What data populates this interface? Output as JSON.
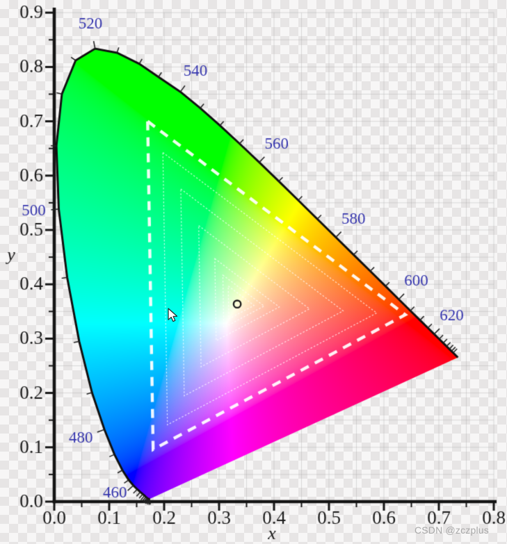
{
  "watermark": {
    "text": "CSDN @zczplus"
  },
  "chart_data": {
    "type": "chromaticity-diagram",
    "title": "",
    "xlabel": "x",
    "ylabel": "y",
    "xlim": [
      0,
      0.8
    ],
    "ylim": [
      0,
      0.9
    ],
    "x_tick_labels": [
      "0.0",
      "0.1",
      "0.2",
      "0.3",
      "0.4",
      "0.5",
      "0.6",
      "0.7",
      "0.8"
    ],
    "y_tick_labels": [
      "0.0",
      "0.1",
      "0.2",
      "0.3",
      "0.4",
      "0.5",
      "0.6",
      "0.7",
      "0.8",
      "0.9"
    ],
    "minor_tick_step": 0.05,
    "grid_step": 0.05,
    "grid_on": true,
    "wavelength_labels": [
      460,
      480,
      500,
      520,
      540,
      560,
      580,
      600,
      620
    ],
    "wavelength_tick_range": [
      400,
      650
    ],
    "wavelength_tick_step": 5,
    "white_point": {
      "x": 0.333,
      "y": 0.363
    },
    "gamut_triangle_xy": [
      [
        0.17,
        0.7
      ],
      [
        0.639,
        0.344
      ],
      [
        0.18,
        0.096
      ]
    ],
    "nested_triangle_scales": [
      1.0,
      0.83,
      0.63,
      0.43,
      0.25,
      0.16,
      0.1
    ],
    "spectral_locus": [
      [
        380,
        0.1741,
        0.005
      ],
      [
        385,
        0.174,
        0.005
      ],
      [
        390,
        0.1738,
        0.0049
      ],
      [
        395,
        0.1736,
        0.0049
      ],
      [
        400,
        0.1733,
        0.0048
      ],
      [
        405,
        0.173,
        0.0048
      ],
      [
        410,
        0.1726,
        0.0048
      ],
      [
        415,
        0.1721,
        0.0048
      ],
      [
        420,
        0.1714,
        0.0051
      ],
      [
        425,
        0.1703,
        0.0058
      ],
      [
        430,
        0.1689,
        0.0069
      ],
      [
        435,
        0.1669,
        0.0086
      ],
      [
        440,
        0.1644,
        0.0109
      ],
      [
        445,
        0.1611,
        0.0138
      ],
      [
        450,
        0.1566,
        0.0177
      ],
      [
        455,
        0.151,
        0.0227
      ],
      [
        460,
        0.144,
        0.0297
      ],
      [
        465,
        0.1355,
        0.0399
      ],
      [
        470,
        0.1241,
        0.0578
      ],
      [
        475,
        0.1096,
        0.0868
      ],
      [
        480,
        0.0913,
        0.1327
      ],
      [
        485,
        0.0687,
        0.2007
      ],
      [
        490,
        0.0454,
        0.295
      ],
      [
        495,
        0.0235,
        0.4127
      ],
      [
        500,
        0.0082,
        0.5384
      ],
      [
        505,
        0.0039,
        0.6548
      ],
      [
        510,
        0.0139,
        0.7502
      ],
      [
        515,
        0.0389,
        0.812
      ],
      [
        520,
        0.0743,
        0.8338
      ],
      [
        525,
        0.1142,
        0.8262
      ],
      [
        530,
        0.1547,
        0.8059
      ],
      [
        535,
        0.1896,
        0.7816
      ],
      [
        540,
        0.2296,
        0.7543
      ],
      [
        545,
        0.2658,
        0.7243
      ],
      [
        550,
        0.3016,
        0.6923
      ],
      [
        555,
        0.3373,
        0.6589
      ],
      [
        560,
        0.3731,
        0.6245
      ],
      [
        565,
        0.4087,
        0.5896
      ],
      [
        570,
        0.4441,
        0.5547
      ],
      [
        575,
        0.4788,
        0.5202
      ],
      [
        580,
        0.5125,
        0.4866
      ],
      [
        585,
        0.5448,
        0.4544
      ],
      [
        590,
        0.5752,
        0.4242
      ],
      [
        595,
        0.6029,
        0.3965
      ],
      [
        600,
        0.627,
        0.3725
      ],
      [
        605,
        0.6482,
        0.3514
      ],
      [
        610,
        0.6658,
        0.334
      ],
      [
        615,
        0.6801,
        0.3197
      ],
      [
        620,
        0.6915,
        0.3083
      ],
      [
        625,
        0.7006,
        0.2993
      ],
      [
        630,
        0.7079,
        0.292
      ],
      [
        635,
        0.714,
        0.2859
      ],
      [
        640,
        0.719,
        0.2809
      ],
      [
        645,
        0.723,
        0.277
      ],
      [
        650,
        0.726,
        0.274
      ],
      [
        655,
        0.7283,
        0.2717
      ],
      [
        660,
        0.73,
        0.27
      ],
      [
        665,
        0.7311,
        0.2689
      ],
      [
        670,
        0.732,
        0.268
      ],
      [
        675,
        0.7327,
        0.2673
      ],
      [
        680,
        0.7334,
        0.2666
      ],
      [
        685,
        0.734,
        0.266
      ],
      [
        690,
        0.7344,
        0.2656
      ],
      [
        695,
        0.7346,
        0.2654
      ],
      [
        700,
        0.7347,
        0.2653
      ]
    ],
    "colors": {
      "axis": "#141414",
      "tick_label": "#1a1a1a",
      "wavelength_label": "#3434ad",
      "grid": "#a5a5a5",
      "locus_outline": "#101010",
      "triangle": "#ffffff",
      "white_point_ring": "#1c1c1c"
    }
  }
}
